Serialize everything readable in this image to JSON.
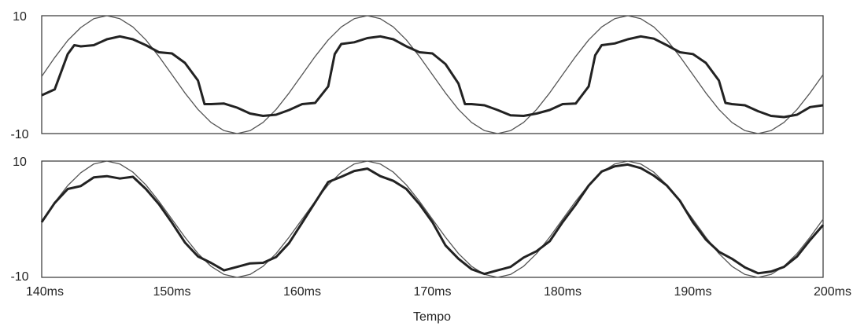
{
  "chart_data": [
    {
      "type": "line",
      "xlabel": "",
      "ylabel": "",
      "ylim": [
        -10,
        10
      ],
      "yticks": [
        "10",
        "-10"
      ],
      "grid": false,
      "series": [
        {
          "style": "thin",
          "color": "#555555",
          "x": [
            140,
            141,
            142,
            143,
            144,
            145,
            146,
            147,
            148,
            149,
            150,
            151,
            152,
            153,
            154,
            155,
            156,
            157,
            158,
            159,
            160,
            161,
            162,
            163,
            164,
            165,
            166,
            167,
            168,
            169,
            170,
            171,
            172,
            173,
            174,
            175,
            176,
            177,
            178,
            179,
            180,
            181,
            182,
            183,
            184,
            185,
            186,
            187,
            188,
            189,
            190,
            191,
            192,
            193,
            194,
            195,
            196,
            197,
            198,
            199,
            200
          ],
          "y": [
            -0.3,
            2.9,
            5.8,
            8.0,
            9.5,
            10.0,
            9.5,
            8.1,
            5.9,
            3.1,
            0.0,
            -3.1,
            -5.9,
            -8.1,
            -9.5,
            -10.0,
            -9.5,
            -8.1,
            -5.9,
            -3.1,
            0.0,
            3.1,
            5.9,
            8.1,
            9.5,
            10.0,
            9.5,
            8.1,
            5.9,
            3.1,
            0.0,
            -3.1,
            -5.9,
            -8.1,
            -9.5,
            -10.0,
            -9.5,
            -8.1,
            -5.9,
            -3.1,
            0.0,
            3.1,
            5.9,
            8.1,
            9.5,
            10.0,
            9.5,
            8.1,
            5.9,
            3.1,
            0.0,
            -3.1,
            -5.9,
            -8.1,
            -9.5,
            -10.0,
            -9.5,
            -8.1,
            -5.9,
            -3.1,
            0.0
          ]
        },
        {
          "style": "thick",
          "color": "#222222",
          "x": [
            140,
            141,
            142,
            142.5,
            143,
            144,
            145,
            146,
            147,
            148,
            149,
            150,
            151,
            152,
            152.5,
            153,
            154,
            155,
            156,
            157,
            158,
            159,
            160,
            161,
            162,
            162.5,
            163,
            164,
            165,
            166,
            167,
            168,
            169,
            170,
            171,
            172,
            172.5,
            173,
            174,
            175,
            176,
            177,
            178,
            179,
            180,
            181,
            182,
            182.5,
            183,
            184,
            185,
            186,
            187,
            188,
            189,
            190,
            191,
            192,
            192.5,
            193,
            194,
            195,
            196,
            197,
            198,
            199,
            200
          ],
          "y": [
            -3.5,
            -2.5,
            3.5,
            5.0,
            4.8,
            5.0,
            6.0,
            6.5,
            6.0,
            5.0,
            3.8,
            3.6,
            2.0,
            -1.0,
            -5.0,
            -5.0,
            -4.9,
            -5.6,
            -6.6,
            -7.0,
            -6.8,
            -6.0,
            -5.0,
            -4.8,
            -2.0,
            3.5,
            5.2,
            5.5,
            6.2,
            6.5,
            6.0,
            4.8,
            3.8,
            3.6,
            1.8,
            -1.5,
            -5.0,
            -5.0,
            -5.2,
            -6.0,
            -6.9,
            -7.0,
            -6.6,
            -6.0,
            -5.0,
            -4.9,
            -2.0,
            3.3,
            5.0,
            5.3,
            6.0,
            6.5,
            6.1,
            5.0,
            3.8,
            3.5,
            2.0,
            -1.0,
            -4.8,
            -5.0,
            -5.2,
            -6.2,
            -7.0,
            -7.2,
            -6.8,
            -5.5,
            -5.2
          ]
        }
      ]
    },
    {
      "type": "line",
      "xlabel": "Tempo",
      "ylabel": "",
      "ylim": [
        -10,
        10
      ],
      "xlim": [
        140,
        200
      ],
      "yticks": [
        "10",
        "-10"
      ],
      "xticks": [
        "140ms",
        "150ms",
        "160ms",
        "170ms",
        "180ms",
        "190ms",
        "200ms"
      ],
      "grid": false,
      "series": [
        {
          "style": "thin",
          "color": "#555555",
          "x": [
            140,
            141,
            142,
            143,
            144,
            145,
            146,
            147,
            148,
            149,
            150,
            151,
            152,
            153,
            154,
            155,
            156,
            157,
            158,
            159,
            160,
            161,
            162,
            163,
            164,
            165,
            166,
            167,
            168,
            169,
            170,
            171,
            172,
            173,
            174,
            175,
            176,
            177,
            178,
            179,
            180,
            181,
            182,
            183,
            184,
            185,
            186,
            187,
            188,
            189,
            190,
            191,
            192,
            193,
            194,
            195,
            196,
            197,
            198,
            199,
            200
          ],
          "y": [
            -0.3,
            2.9,
            5.8,
            8.0,
            9.5,
            10.0,
            9.5,
            8.1,
            5.9,
            3.1,
            0.0,
            -3.1,
            -5.9,
            -8.1,
            -9.5,
            -10.0,
            -9.5,
            -8.1,
            -5.9,
            -3.1,
            0.0,
            3.1,
            5.9,
            8.1,
            9.5,
            10.0,
            9.5,
            8.1,
            5.9,
            3.1,
            0.0,
            -3.1,
            -5.9,
            -8.1,
            -9.5,
            -10.0,
            -9.5,
            -8.1,
            -5.9,
            -3.1,
            0.0,
            3.1,
            5.9,
            8.1,
            9.5,
            10.0,
            9.5,
            8.1,
            5.9,
            3.1,
            0.0,
            -3.1,
            -5.9,
            -8.1,
            -9.5,
            -10.0,
            -9.5,
            -8.1,
            -5.9,
            -3.1,
            0.0
          ]
        },
        {
          "style": "thick",
          "color": "#222222",
          "x": [
            140,
            141,
            142,
            143,
            144,
            145,
            146,
            147,
            148,
            149,
            150,
            151,
            152,
            153,
            154,
            155,
            156,
            157,
            158,
            159,
            160,
            161,
            162,
            163,
            164,
            165,
            166,
            167,
            168,
            169,
            170,
            171,
            172,
            173,
            174,
            175,
            176,
            177,
            178,
            179,
            180,
            181,
            182,
            183,
            184,
            185,
            186,
            187,
            188,
            189,
            190,
            191,
            192,
            193,
            194,
            195,
            196,
            197,
            198,
            199,
            200
          ],
          "y": [
            -0.5,
            2.8,
            5.2,
            5.7,
            7.2,
            7.4,
            7.0,
            7.3,
            5.2,
            2.6,
            -0.6,
            -4.0,
            -6.4,
            -7.5,
            -8.8,
            -8.2,
            -7.6,
            -7.5,
            -6.5,
            -4.1,
            -0.6,
            2.9,
            6.4,
            7.3,
            8.3,
            8.7,
            7.4,
            6.6,
            5.2,
            2.6,
            -0.5,
            -4.5,
            -6.8,
            -8.6,
            -9.4,
            -8.8,
            -8.2,
            -6.6,
            -5.5,
            -3.8,
            -0.5,
            2.5,
            5.8,
            8.2,
            9.1,
            9.4,
            8.8,
            7.5,
            5.8,
            3.2,
            -0.5,
            -3.5,
            -5.6,
            -6.8,
            -8.3,
            -9.3,
            -9.0,
            -8.2,
            -6.4,
            -3.6,
            -1.0
          ]
        }
      ]
    }
  ]
}
